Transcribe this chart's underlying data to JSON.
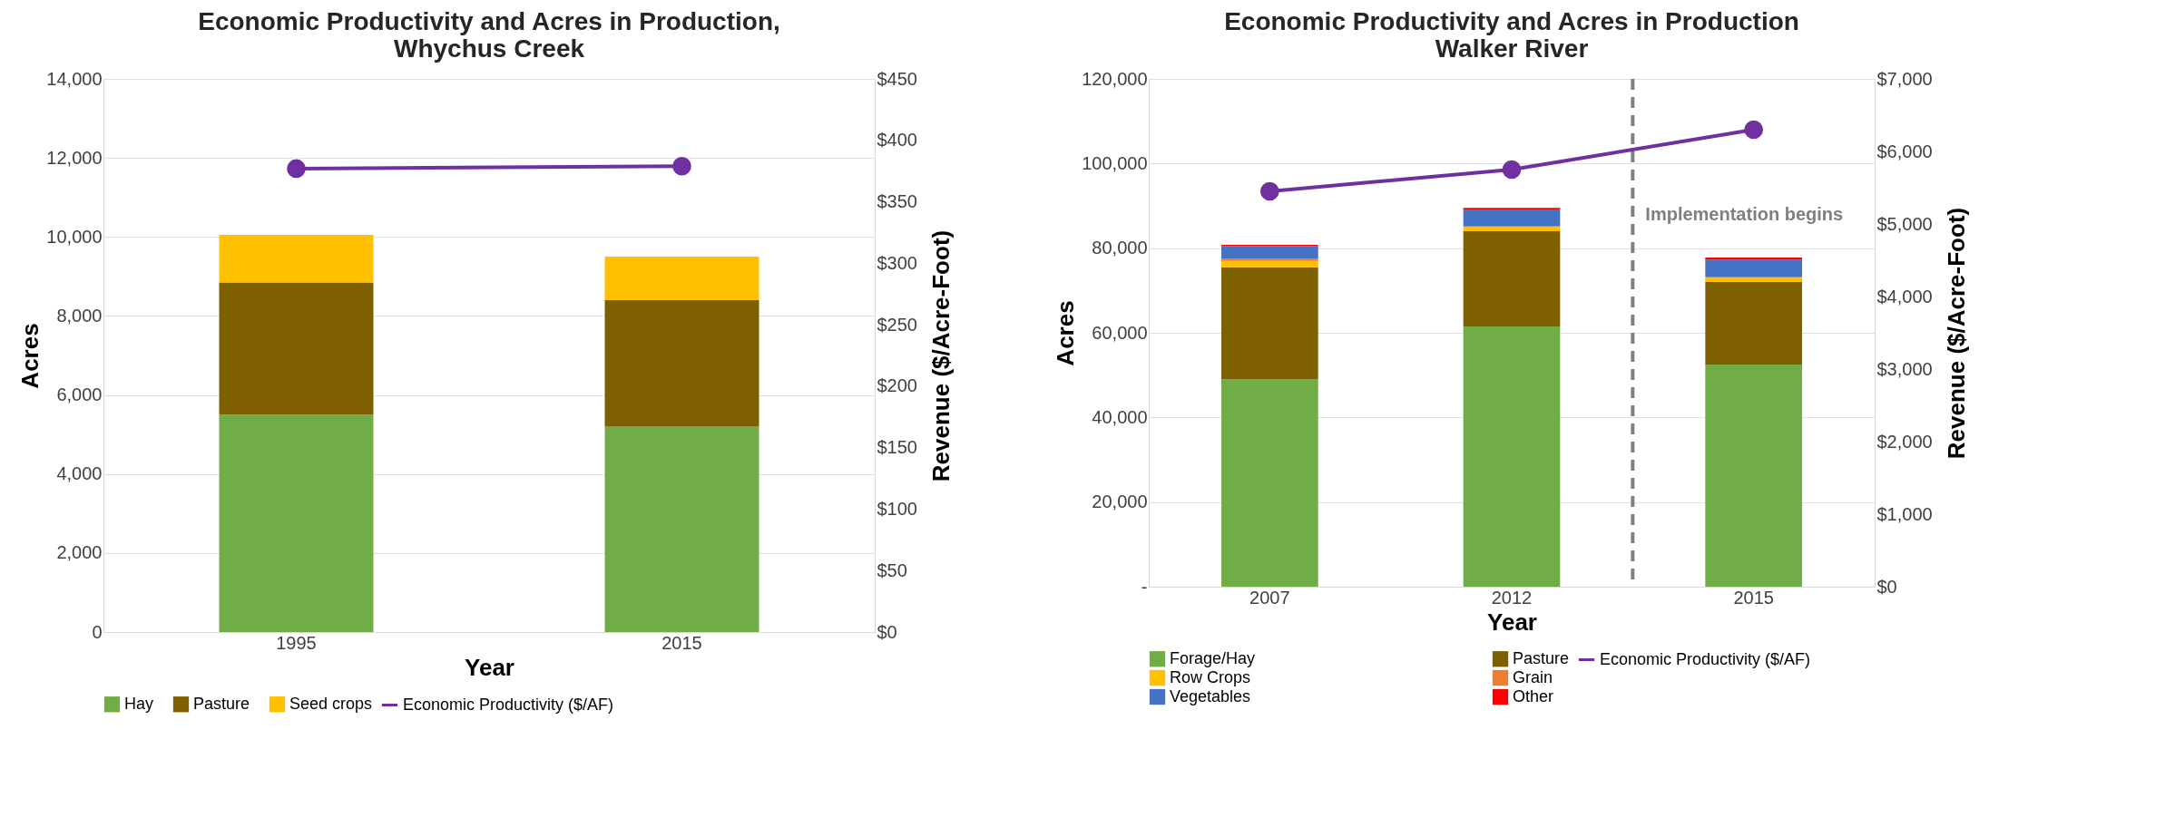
{
  "chart_data": [
    {
      "type": "bar",
      "title": "Economic Productivity and Acres in Production,\nWhychus Creek",
      "xlabel": "Year",
      "ylabel": "Acres",
      "y2label": "Revenue ($/Acre-Foot)",
      "categories": [
        "1995",
        "2015"
      ],
      "stacked": true,
      "series": [
        {
          "name": "Hay",
          "color": "#70ad47",
          "values": [
            5500,
            5200
          ]
        },
        {
          "name": "Pasture",
          "color": "#7f6000",
          "values": [
            3350,
            3200
          ]
        },
        {
          "name": "Seed crops",
          "color": "#ffc000",
          "values": [
            1200,
            1100
          ]
        },
        {
          "name": "Economic Productivity ($/AF)",
          "type": "line",
          "axis": "y2",
          "color": "#7030a0",
          "marker": "circle",
          "values": [
            377,
            379
          ]
        }
      ],
      "ylim": [
        0,
        14000
      ],
      "yticks": [
        {
          "value": 0,
          "label": "0"
        },
        {
          "value": 2000,
          "label": "2,000"
        },
        {
          "value": 4000,
          "label": "4,000"
        },
        {
          "value": 6000,
          "label": "6,000"
        },
        {
          "value": 8000,
          "label": "8,000"
        },
        {
          "value": 10000,
          "label": "10,000"
        },
        {
          "value": 12000,
          "label": "12,000"
        },
        {
          "value": 14000,
          "label": "14,000"
        }
      ],
      "y2lim": [
        0,
        450
      ],
      "y2ticks": [
        {
          "value": 0,
          "label": "$0"
        },
        {
          "value": 50,
          "label": "$50"
        },
        {
          "value": 100,
          "label": "$100"
        },
        {
          "value": 150,
          "label": "$150"
        },
        {
          "value": 200,
          "label": "$200"
        },
        {
          "value": 250,
          "label": "$250"
        },
        {
          "value": 300,
          "label": "$300"
        },
        {
          "value": 350,
          "label": "$350"
        },
        {
          "value": 400,
          "label": "$400"
        },
        {
          "value": 450,
          "label": "$450"
        }
      ],
      "grid": "y",
      "legend": "bottom"
    },
    {
      "type": "bar",
      "title": "Economic Productivity and Acres in Production\nWalker River",
      "xlabel": "Year",
      "ylabel": "Acres",
      "y2label": "Revenue ($/Acre-Foot)",
      "categories": [
        "2007",
        "2012",
        "2015"
      ],
      "stacked": true,
      "series": [
        {
          "name": "Forage/Hay",
          "color": "#70ad47",
          "values": [
            49000,
            61500,
            52500
          ]
        },
        {
          "name": "Pasture",
          "color": "#7f6000",
          "values": [
            26500,
            22500,
            19500
          ]
        },
        {
          "name": "Row Crops",
          "color": "#ffc000",
          "values": [
            1500,
            1000,
            1000
          ]
        },
        {
          "name": "Grain",
          "color": "#ed7d31",
          "values": [
            500,
            300,
            300
          ]
        },
        {
          "name": "Vegetables",
          "color": "#4472c4",
          "values": [
            3000,
            3700,
            4000
          ]
        },
        {
          "name": "Other",
          "color": "#ff0000",
          "values": [
            300,
            500,
            500
          ]
        },
        {
          "name": "Economic Productivity ($/AF)",
          "type": "line",
          "axis": "y2",
          "color": "#7030a0",
          "marker": "circle",
          "values": [
            5450,
            5750,
            6300
          ]
        }
      ],
      "ylim": [
        0,
        120000
      ],
      "yticks": [
        {
          "value": 0,
          "label": "-"
        },
        {
          "value": 20000,
          "label": "20,000"
        },
        {
          "value": 40000,
          "label": "40,000"
        },
        {
          "value": 60000,
          "label": "60,000"
        },
        {
          "value": 80000,
          "label": "80,000"
        },
        {
          "value": 100000,
          "label": "100,000"
        },
        {
          "value": 120000,
          "label": "120,000"
        }
      ],
      "y2lim": [
        0,
        7000
      ],
      "y2ticks": [
        {
          "value": 0,
          "label": "$0"
        },
        {
          "value": 1000,
          "label": "$1,000"
        },
        {
          "value": 2000,
          "label": "$2,000"
        },
        {
          "value": 3000,
          "label": "$3,000"
        },
        {
          "value": 4000,
          "label": "$4,000"
        },
        {
          "value": 5000,
          "label": "$5,000"
        },
        {
          "value": 6000,
          "label": "$6,000"
        },
        {
          "value": 7000,
          "label": "$7,000"
        }
      ],
      "ref_lines": [
        {
          "axis": "x",
          "value": "2015",
          "label": "Implementation begins",
          "color": "#808080",
          "line_style": "dashed"
        }
      ],
      "grid": "y",
      "legend": "bottom"
    }
  ]
}
